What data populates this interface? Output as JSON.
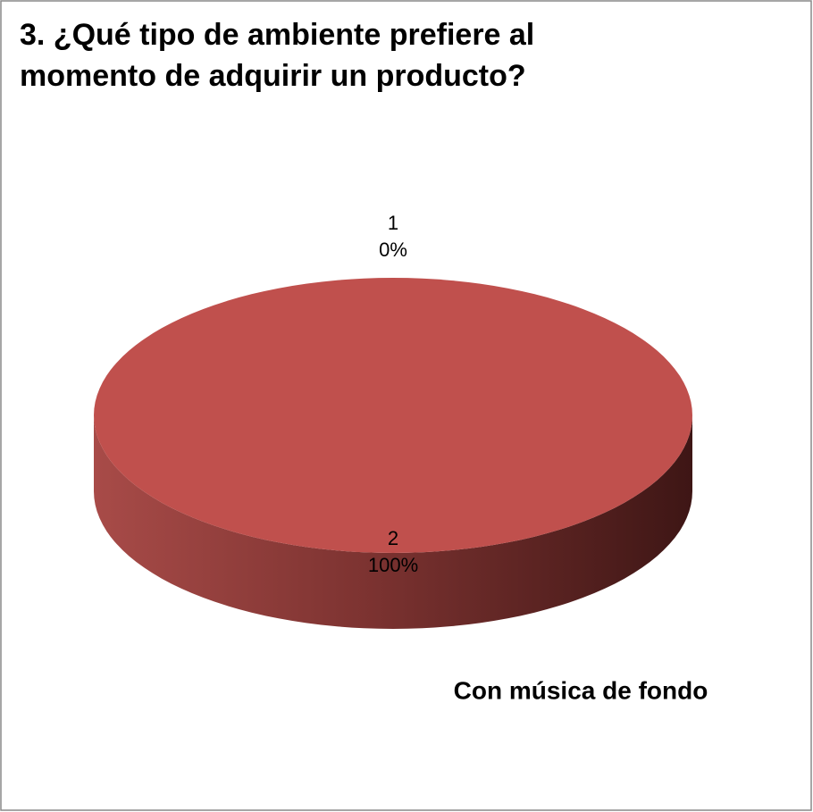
{
  "chart_data": {
    "type": "pie3d",
    "title": "3. ¿Qué tipo de ambiente prefiere al momento de adquirir un producto?",
    "categories": [
      "1",
      "2"
    ],
    "values": [
      0,
      100
    ],
    "value_labels": [
      "0%",
      "100%"
    ],
    "color": "#c0504d",
    "annotation": "Con música de fondo"
  }
}
